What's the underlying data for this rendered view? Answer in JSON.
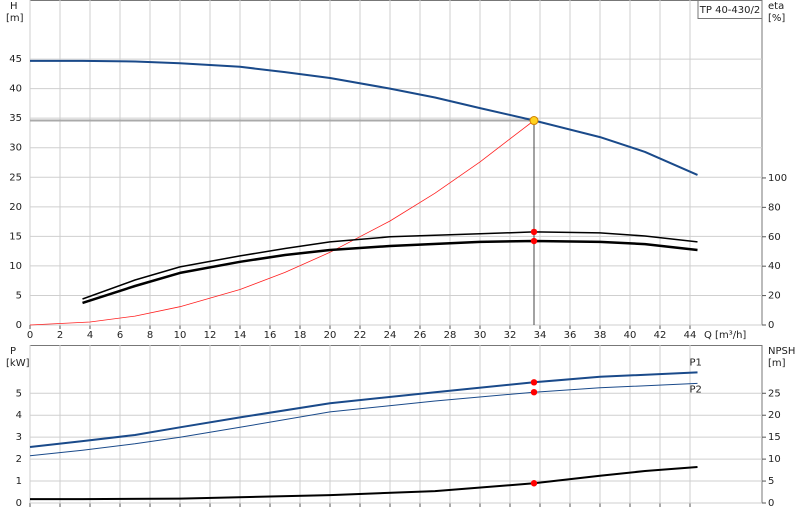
{
  "chart_data": [
    {
      "type": "line",
      "title": "TP 40-430/2",
      "y_label": "H",
      "y_unit": "[m]",
      "y2_label": "eta",
      "y2_unit": "[%]",
      "x_label": "Q [m³/h]",
      "xlim": [
        0,
        48.8
      ],
      "xticks": [
        0,
        2,
        4,
        6,
        8,
        10,
        12,
        14,
        16,
        18,
        20,
        22,
        24,
        26,
        28,
        30,
        32,
        34,
        36,
        38,
        40,
        42,
        44
      ],
      "xtick_labels": true,
      "ylim": [
        0,
        55
      ],
      "yticks": [
        0,
        5,
        10,
        15,
        20,
        25,
        30,
        35,
        40,
        45
      ],
      "y2lim": [
        0,
        221
      ],
      "y2ticks": [
        0,
        20,
        40,
        60,
        80,
        100
      ],
      "grid": true,
      "duty_point": {
        "x": 33.6,
        "y": 34.6,
        "color": "#ffd21f"
      },
      "marker_color": "#ff0000",
      "series": [
        {
          "color": "#1a4a8a",
          "width": 2,
          "x": [
            0,
            3.5,
            7,
            10,
            14,
            17,
            20,
            24,
            27,
            30,
            33.6,
            38,
            41,
            44.5
          ],
          "values": [
            44.7,
            44.7,
            44.6,
            44.3,
            43.7,
            42.8,
            41.8,
            40.0,
            38.5,
            36.7,
            34.6,
            31.8,
            29.3,
            25.4
          ]
        },
        {
          "color": "#ff2020",
          "width": 0.8,
          "x": [
            0,
            4,
            7,
            10,
            14,
            17,
            20,
            24,
            27,
            30,
            33.6
          ],
          "values": [
            0,
            0.5,
            1.5,
            3.1,
            6,
            8.9,
            12.3,
            17.6,
            22.3,
            27.6,
            34.6
          ]
        },
        {
          "color": "#000000",
          "width": 1.5,
          "axis": "y2",
          "marked": true,
          "x": [
            3.5,
            7,
            10,
            14,
            17,
            20,
            24,
            30,
            33.6,
            38,
            41,
            44.5
          ],
          "values": [
            17.7,
            30.6,
            39.5,
            47,
            52,
            56.5,
            60,
            62,
            63.3,
            62.6,
            60.5,
            56.5
          ]
        },
        {
          "color": "#000000",
          "width": 2.5,
          "axis": "y2",
          "marked": true,
          "x": [
            3.5,
            7,
            10,
            14,
            17,
            20,
            24,
            30,
            33.6,
            38,
            41,
            44.5
          ],
          "values": [
            15,
            26.5,
            35.4,
            43,
            47.6,
            51,
            53.7,
            56.5,
            57.1,
            56.5,
            55,
            51
          ]
        }
      ]
    },
    {
      "type": "line",
      "y_label": "P",
      "y_unit": "[kW]",
      "y2_label": "NPSH",
      "y2_unit": "[m]",
      "xlim": [
        0,
        48.8
      ],
      "xticks": [
        0,
        2,
        4,
        6,
        8,
        10,
        12,
        14,
        16,
        18,
        20,
        22,
        24,
        26,
        28,
        30,
        32,
        34,
        36,
        38,
        40,
        42,
        44
      ],
      "xtick_labels": false,
      "ylim": [
        0,
        7.2
      ],
      "yticks": [
        0,
        1,
        2,
        3,
        4,
        5
      ],
      "y2lim": [
        0,
        36
      ],
      "y2ticks": [
        0,
        5,
        10,
        15,
        20,
        25
      ],
      "grid": true,
      "marker_color": "#ff0000",
      "series": [
        {
          "name": "P1",
          "color": "#1a4a8a",
          "width": 2,
          "marked": true,
          "x": [
            0,
            3.5,
            7,
            10,
            14,
            20,
            27,
            33.6,
            38,
            44.5
          ],
          "values": [
            2.55,
            2.82,
            3.1,
            3.45,
            3.9,
            4.55,
            5.05,
            5.5,
            5.75,
            5.95
          ]
        },
        {
          "name": "P2",
          "color": "#1a4a8a",
          "width": 1,
          "marked": true,
          "x": [
            0,
            3.5,
            7,
            10,
            14,
            20,
            27,
            33.6,
            38,
            44.5
          ],
          "values": [
            2.15,
            2.4,
            2.7,
            3.0,
            3.45,
            4.15,
            4.65,
            5.05,
            5.25,
            5.45
          ]
        },
        {
          "color": "#000000",
          "width": 2,
          "axis": "y2",
          "marked": true,
          "x": [
            0,
            3.5,
            10,
            20,
            27,
            33.6,
            38,
            41,
            44.5
          ],
          "values": [
            0.9,
            0.9,
            1.0,
            1.8,
            2.7,
            4.5,
            6.2,
            7.3,
            8.2
          ]
        }
      ]
    }
  ]
}
